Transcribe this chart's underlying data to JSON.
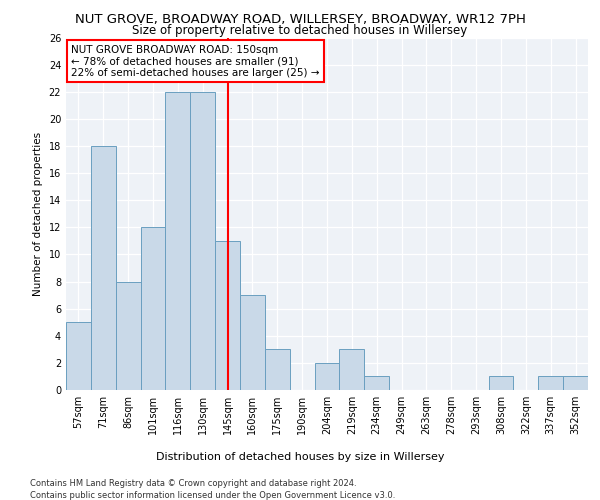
{
  "title": "NUT GROVE, BROADWAY ROAD, WILLERSEY, BROADWAY, WR12 7PH",
  "subtitle": "Size of property relative to detached houses in Willersey",
  "xlabel": "Distribution of detached houses by size in Willersey",
  "ylabel": "Number of detached properties",
  "categories": [
    "57sqm",
    "71sqm",
    "86sqm",
    "101sqm",
    "116sqm",
    "130sqm",
    "145sqm",
    "160sqm",
    "175sqm",
    "190sqm",
    "204sqm",
    "219sqm",
    "234sqm",
    "249sqm",
    "263sqm",
    "278sqm",
    "293sqm",
    "308sqm",
    "322sqm",
    "337sqm",
    "352sqm"
  ],
  "values": [
    5,
    18,
    8,
    12,
    22,
    22,
    11,
    7,
    3,
    0,
    2,
    3,
    1,
    0,
    0,
    0,
    0,
    1,
    0,
    1,
    1
  ],
  "bar_color": "#c9d9e8",
  "bar_edge_color": "#6a9fc0",
  "vline_index": 6,
  "vline_color": "red",
  "ylim": [
    0,
    26
  ],
  "yticks": [
    0,
    2,
    4,
    6,
    8,
    10,
    12,
    14,
    16,
    18,
    20,
    22,
    24,
    26
  ],
  "annotation_text": "NUT GROVE BROADWAY ROAD: 150sqm\n← 78% of detached houses are smaller (91)\n22% of semi-detached houses are larger (25) →",
  "annotation_box_facecolor": "white",
  "annotation_box_edgecolor": "red",
  "footer_line1": "Contains HM Land Registry data © Crown copyright and database right 2024.",
  "footer_line2": "Contains public sector information licensed under the Open Government Licence v3.0.",
  "title_fontsize": 9.5,
  "subtitle_fontsize": 8.5,
  "xlabel_fontsize": 8,
  "ylabel_fontsize": 7.5,
  "tick_fontsize": 7,
  "annotation_fontsize": 7.5,
  "footer_fontsize": 6,
  "bg_color": "#eef2f7"
}
